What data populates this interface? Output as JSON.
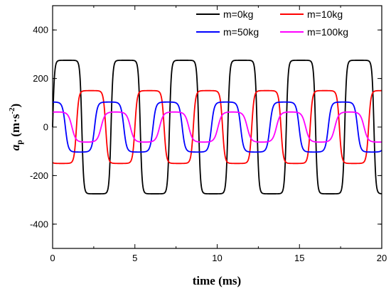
{
  "chart_data": {
    "type": "line",
    "title": "",
    "xlabel": "time (ms)",
    "ylabel_main": "a",
    "ylabel_sub": "p",
    "ylabel_unit_open": " (m·s",
    "ylabel_unit_exp": "-2",
    "ylabel_unit_close": ")",
    "xlim": [
      0,
      20
    ],
    "ylim": [
      -500,
      500
    ],
    "xticks": [
      0,
      5,
      10,
      15,
      20
    ],
    "yticks": [
      -400,
      -200,
      0,
      200,
      400
    ],
    "x_minor_step": 2.5,
    "y_minor_step": 100,
    "grid": false,
    "legend_position": "top-right",
    "period_ms": 3.55,
    "series": [
      {
        "name": "m=0kg",
        "color": "#000000",
        "amplitude": 275,
        "phase_ms": 0.0,
        "sharpness": 5.0
      },
      {
        "name": "m=10kg",
        "color": "#ff0000",
        "amplitude": 150,
        "phase_ms": 1.45,
        "sharpness": 4.0
      },
      {
        "name": "m=50kg",
        "color": "#0000ff",
        "amplitude": 103,
        "phase_ms": 2.55,
        "sharpness": 3.2
      },
      {
        "name": "m=100kg",
        "color": "#ff00ff",
        "amplitude": 62,
        "phase_ms": 2.95,
        "sharpness": 2.4
      }
    ]
  }
}
